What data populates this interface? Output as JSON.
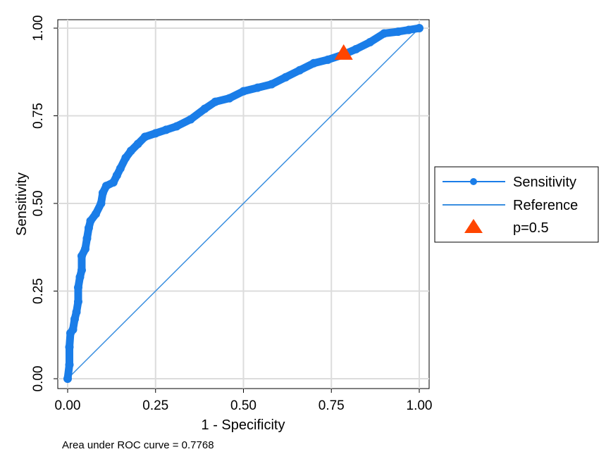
{
  "chart_data": {
    "type": "line",
    "xlabel": "1 - Specificity",
    "ylabel": "Sensitivity",
    "xlim": [
      0,
      1
    ],
    "ylim": [
      0,
      1
    ],
    "x_ticks": [
      "0.00",
      "0.25",
      "0.50",
      "0.75",
      "1.00"
    ],
    "y_ticks": [
      "0.00",
      "0.25",
      "0.50",
      "0.75",
      "1.00"
    ],
    "grid": true,
    "legend_position": "right",
    "note": "Area under ROC curve = 0.7768",
    "colors": {
      "curve": "#1a7de8",
      "reference": "#3a8fe0",
      "marker": "#ff4500"
    },
    "series": [
      {
        "name": "Sensitivity",
        "style": "line-markers",
        "points": [
          [
            0.0,
            0.0
          ],
          [
            0.005,
            0.04
          ],
          [
            0.005,
            0.09
          ],
          [
            0.008,
            0.13
          ],
          [
            0.015,
            0.14
          ],
          [
            0.02,
            0.17
          ],
          [
            0.025,
            0.19
          ],
          [
            0.03,
            0.22
          ],
          [
            0.03,
            0.26
          ],
          [
            0.035,
            0.29
          ],
          [
            0.04,
            0.31
          ],
          [
            0.04,
            0.35
          ],
          [
            0.05,
            0.37
          ],
          [
            0.055,
            0.4
          ],
          [
            0.06,
            0.43
          ],
          [
            0.065,
            0.45
          ],
          [
            0.08,
            0.47
          ],
          [
            0.095,
            0.5
          ],
          [
            0.1,
            0.53
          ],
          [
            0.11,
            0.55
          ],
          [
            0.13,
            0.56
          ],
          [
            0.14,
            0.58
          ],
          [
            0.15,
            0.6
          ],
          [
            0.165,
            0.63
          ],
          [
            0.18,
            0.65
          ],
          [
            0.2,
            0.67
          ],
          [
            0.22,
            0.69
          ],
          [
            0.25,
            0.7
          ],
          [
            0.28,
            0.71
          ],
          [
            0.31,
            0.72
          ],
          [
            0.35,
            0.74
          ],
          [
            0.39,
            0.77
          ],
          [
            0.42,
            0.79
          ],
          [
            0.46,
            0.8
          ],
          [
            0.5,
            0.82
          ],
          [
            0.54,
            0.83
          ],
          [
            0.58,
            0.84
          ],
          [
            0.62,
            0.86
          ],
          [
            0.66,
            0.88
          ],
          [
            0.7,
            0.9
          ],
          [
            0.74,
            0.91
          ],
          [
            0.785,
            0.925
          ],
          [
            0.82,
            0.94
          ],
          [
            0.86,
            0.96
          ],
          [
            0.9,
            0.985
          ],
          [
            0.94,
            0.99
          ],
          [
            0.97,
            0.995
          ],
          [
            1.0,
            1.0
          ]
        ]
      },
      {
        "name": "Reference",
        "style": "line",
        "points": [
          [
            0,
            0
          ],
          [
            1,
            1
          ]
        ]
      },
      {
        "name": "p=0.5",
        "style": "triangle-marker",
        "points": [
          [
            0.785,
            0.93
          ]
        ]
      }
    ]
  }
}
